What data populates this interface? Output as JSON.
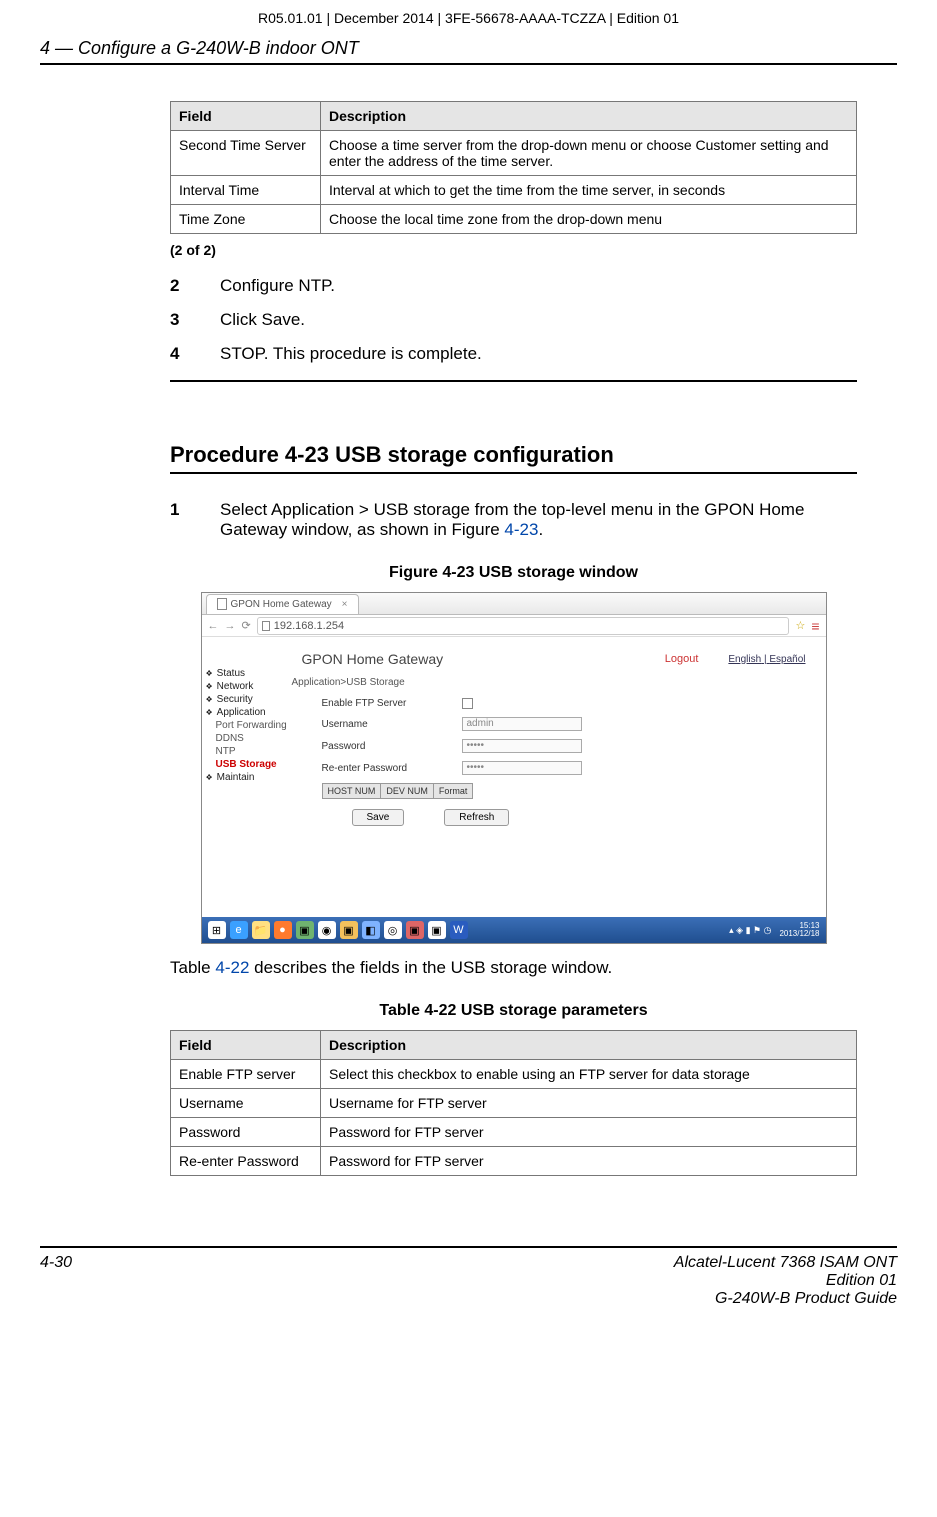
{
  "meta": {
    "header": "R05.01.01 | December 2014 | 3FE-56678-AAAA-TCZZA | Edition 01",
    "chapter": "4 —  Configure a G-240W-B indoor ONT",
    "page_num": "4-30",
    "footer_line1": "Alcatel-Lucent 7368 ISAM ONT",
    "footer_line2": "Edition 01",
    "footer_line3": "G-240W-B Product Guide"
  },
  "table1": {
    "h_field": "Field",
    "h_desc": "Description",
    "r1f": "Second Time Server",
    "r1d": "Choose a time server from the drop-down menu or choose Customer setting and enter the address of the time server.",
    "r2f": "Interval Time",
    "r2d": "Interval at which to get the time from the time server, in seconds",
    "r3f": "Time Zone",
    "r3d": "Choose the local time zone from the drop-down menu",
    "note": "(2 of 2)"
  },
  "steps1": {
    "n2": "2",
    "t2": "Configure NTP.",
    "n3": "3",
    "t3": "Click Save.",
    "n4": "4",
    "t4": "STOP. This procedure is complete."
  },
  "procedure": {
    "title": "Procedure 4-23  USB storage configuration",
    "step1_num": "1",
    "step1_a": "Select Application > USB storage from the top-level menu in the GPON Home Gateway window, as shown in Figure ",
    "step1_link": "4-23",
    "step1_b": ".",
    "fig_caption": "Figure 4-23  USB storage window",
    "after_a": "Table ",
    "after_link": "4-22",
    "after_b": " describes the fields in the USB storage window.",
    "tbl_caption": "Table 4-22 USB storage parameters"
  },
  "screenshot": {
    "tab_title": "GPON Home Gateway",
    "url": "192.168.1.254",
    "brand": "GPON Home Gateway",
    "logout": "Logout",
    "lang1": "English",
    "lang2": "Español",
    "breadcrumb": "Application>USB Storage",
    "nav": {
      "status": "Status",
      "network": "Network",
      "security": "Security",
      "application": "Application",
      "port_forwarding": "Port Forwarding",
      "ddns": "DDNS",
      "ntp": "NTP",
      "usb_storage": "USB Storage",
      "maintain": "Maintain"
    },
    "form": {
      "enable": "Enable FTP Server",
      "username_lbl": "Username",
      "username_val": "admin",
      "password_lbl": "Password",
      "password_val": "•••••",
      "repass_lbl": "Re-enter Password",
      "repass_val": "•••••",
      "tab_host": "HOST NUM",
      "tab_dev": "DEV NUM",
      "tab_fmt": "Format",
      "btn_save": "Save",
      "btn_refresh": "Refresh"
    },
    "clock_time": "15:13",
    "clock_date": "2013/12/18"
  },
  "table2": {
    "h_field": "Field",
    "h_desc": "Description",
    "r1f": "Enable FTP server",
    "r1d": "Select this checkbox to enable using an FTP server for data storage",
    "r2f": "Username",
    "r2d": "Username for FTP server",
    "r3f": "Password",
    "r3d": "Password for FTP server",
    "r4f": "Re-enter Password",
    "r4d": "Password for FTP server"
  }
}
